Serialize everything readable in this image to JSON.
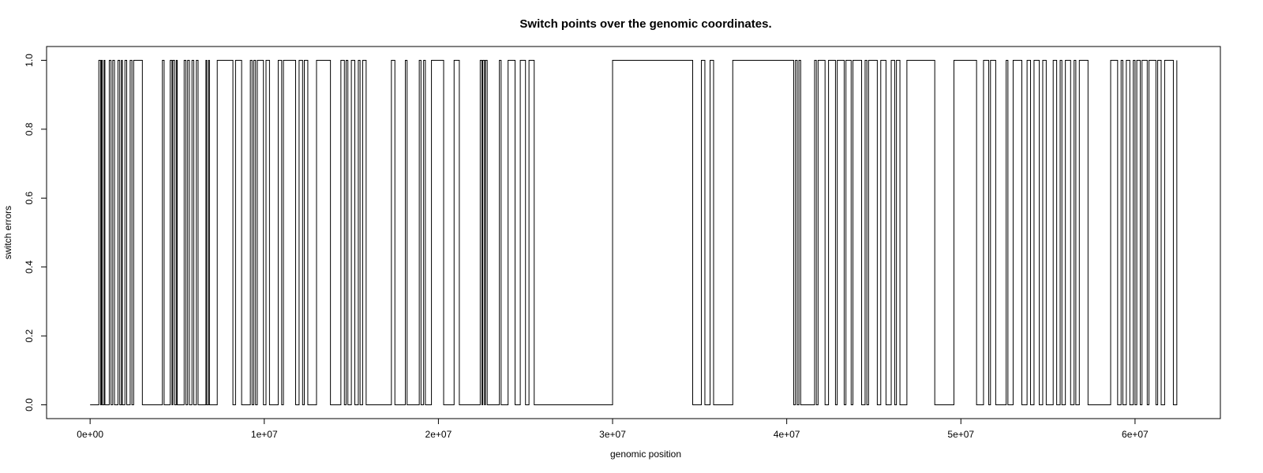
{
  "chart_data": {
    "type": "line",
    "line_style": "step",
    "title": "Switch points over the genomic coordinates.",
    "xlabel": "genomic position",
    "ylabel": "switch errors",
    "xlim": [
      -2500000,
      64900000
    ],
    "ylim": [
      -0.04,
      1.04
    ],
    "x_ticks": [
      0,
      10000000,
      20000000,
      30000000,
      40000000,
      50000000,
      60000000
    ],
    "x_tick_labels": [
      "0e+00",
      "1e+07",
      "2e+07",
      "3e+07",
      "4e+07",
      "5e+07",
      "6e+07"
    ],
    "y_ticks": [
      0.0,
      0.2,
      0.4,
      0.6,
      0.8,
      1.0
    ],
    "y_tick_labels": [
      "0.0",
      "0.2",
      "0.4",
      "0.6",
      "0.8",
      "1.0"
    ],
    "grid": false,
    "line_color": "#000000",
    "series": [
      {
        "x": [
          0,
          500000,
          600000,
          650000,
          700000,
          800000,
          850000,
          1100000,
          1200000,
          1300000,
          1400000,
          1600000,
          1700000,
          1800000,
          1850000,
          2000000,
          2100000,
          2300000,
          2400000,
          2500000,
          3000000,
          4150000,
          4250000,
          4600000,
          4700000,
          4750000,
          4850000,
          4950000,
          5000000,
          5400000,
          5500000,
          5600000,
          5700000,
          5850000,
          5950000,
          6100000,
          6200000,
          6650000,
          6700000,
          6800000,
          6850000,
          7300000,
          8200000,
          8350000,
          8700000,
          9200000,
          9300000,
          9400000,
          9500000,
          9600000,
          9950000,
          10100000,
          10300000,
          10800000,
          11000000,
          11100000,
          11800000,
          12000000,
          12200000,
          12300000,
          12500000,
          13000000,
          13800000,
          14400000,
          14600000,
          14700000,
          14800000,
          15000000,
          15200000,
          15400000,
          15500000,
          15650000,
          15850000,
          17300000,
          17500000,
          18100000,
          18200000,
          18900000,
          19000000,
          19150000,
          19250000,
          19600000,
          20300000,
          20900000,
          21200000,
          22400000,
          22500000,
          22550000,
          22650000,
          22700000,
          22800000,
          23500000,
          23600000,
          24000000,
          24400000,
          24700000,
          25000000,
          25200000,
          25500000,
          26200000,
          30000000,
          34600000,
          35100000,
          35300000,
          35600000,
          35800000,
          36200000,
          36900000,
          40400000,
          40500000,
          40600000,
          40700000,
          40800000,
          41600000,
          41700000,
          41800000,
          42200000,
          42400000,
          42800000,
          42900000,
          43300000,
          43400000,
          43700000,
          43800000,
          44300000,
          44500000,
          44600000,
          44700000,
          45200000,
          45400000,
          45700000,
          46000000,
          46200000,
          46300000,
          46500000,
          46900000,
          48500000,
          49600000,
          50900000,
          51300000,
          51600000,
          51700000,
          52000000,
          52600000,
          52700000,
          53000000,
          53500000,
          53800000,
          54000000,
          54200000,
          54500000,
          54700000,
          54900000,
          55300000,
          55500000,
          55700000,
          55800000,
          56000000,
          56300000,
          56500000,
          56600000,
          56800000,
          57300000,
          58600000,
          59000000,
          59200000,
          59300000,
          59500000,
          59700000,
          59900000,
          60000000,
          60100000,
          60300000,
          60400000,
          60700000,
          60800000,
          61200000,
          61300000,
          61500000,
          61700000,
          62200000,
          62400000
        ],
        "y": [
          0,
          1,
          0,
          1,
          0,
          1,
          0,
          1,
          0,
          1,
          0,
          1,
          0,
          1,
          0,
          1,
          0,
          1,
          0,
          1,
          0,
          1,
          0,
          1,
          0,
          1,
          0,
          1,
          0,
          1,
          0,
          1,
          0,
          1,
          0,
          1,
          0,
          1,
          0,
          1,
          0,
          1,
          0,
          1,
          0,
          1,
          0,
          1,
          0,
          1,
          0,
          1,
          0,
          1,
          0,
          1,
          0,
          1,
          0,
          1,
          0,
          1,
          0,
          1,
          0,
          1,
          0,
          1,
          0,
          1,
          0,
          1,
          0,
          1,
          0,
          1,
          0,
          1,
          0,
          1,
          0,
          1,
          0,
          1,
          0,
          1,
          0,
          1,
          0,
          1,
          0,
          1,
          0,
          1,
          0,
          1,
          0,
          1,
          0,
          0,
          1,
          0,
          1,
          0,
          1,
          0,
          0,
          1,
          0,
          1,
          0,
          1,
          0,
          1,
          0,
          1,
          0,
          1,
          0,
          1,
          0,
          1,
          0,
          1,
          0,
          1,
          0,
          1,
          0,
          1,
          0,
          1,
          0,
          1,
          0,
          1,
          0,
          1,
          0,
          1,
          0,
          1,
          0,
          1,
          0,
          1,
          0,
          1,
          0,
          1,
          0,
          1,
          0,
          1,
          0,
          1,
          0,
          1,
          0,
          1,
          0,
          1,
          0,
          1,
          0,
          1,
          0,
          1,
          0,
          1,
          0,
          1,
          0,
          1,
          0,
          1,
          0,
          1,
          0,
          1,
          0,
          1
        ]
      }
    ]
  }
}
